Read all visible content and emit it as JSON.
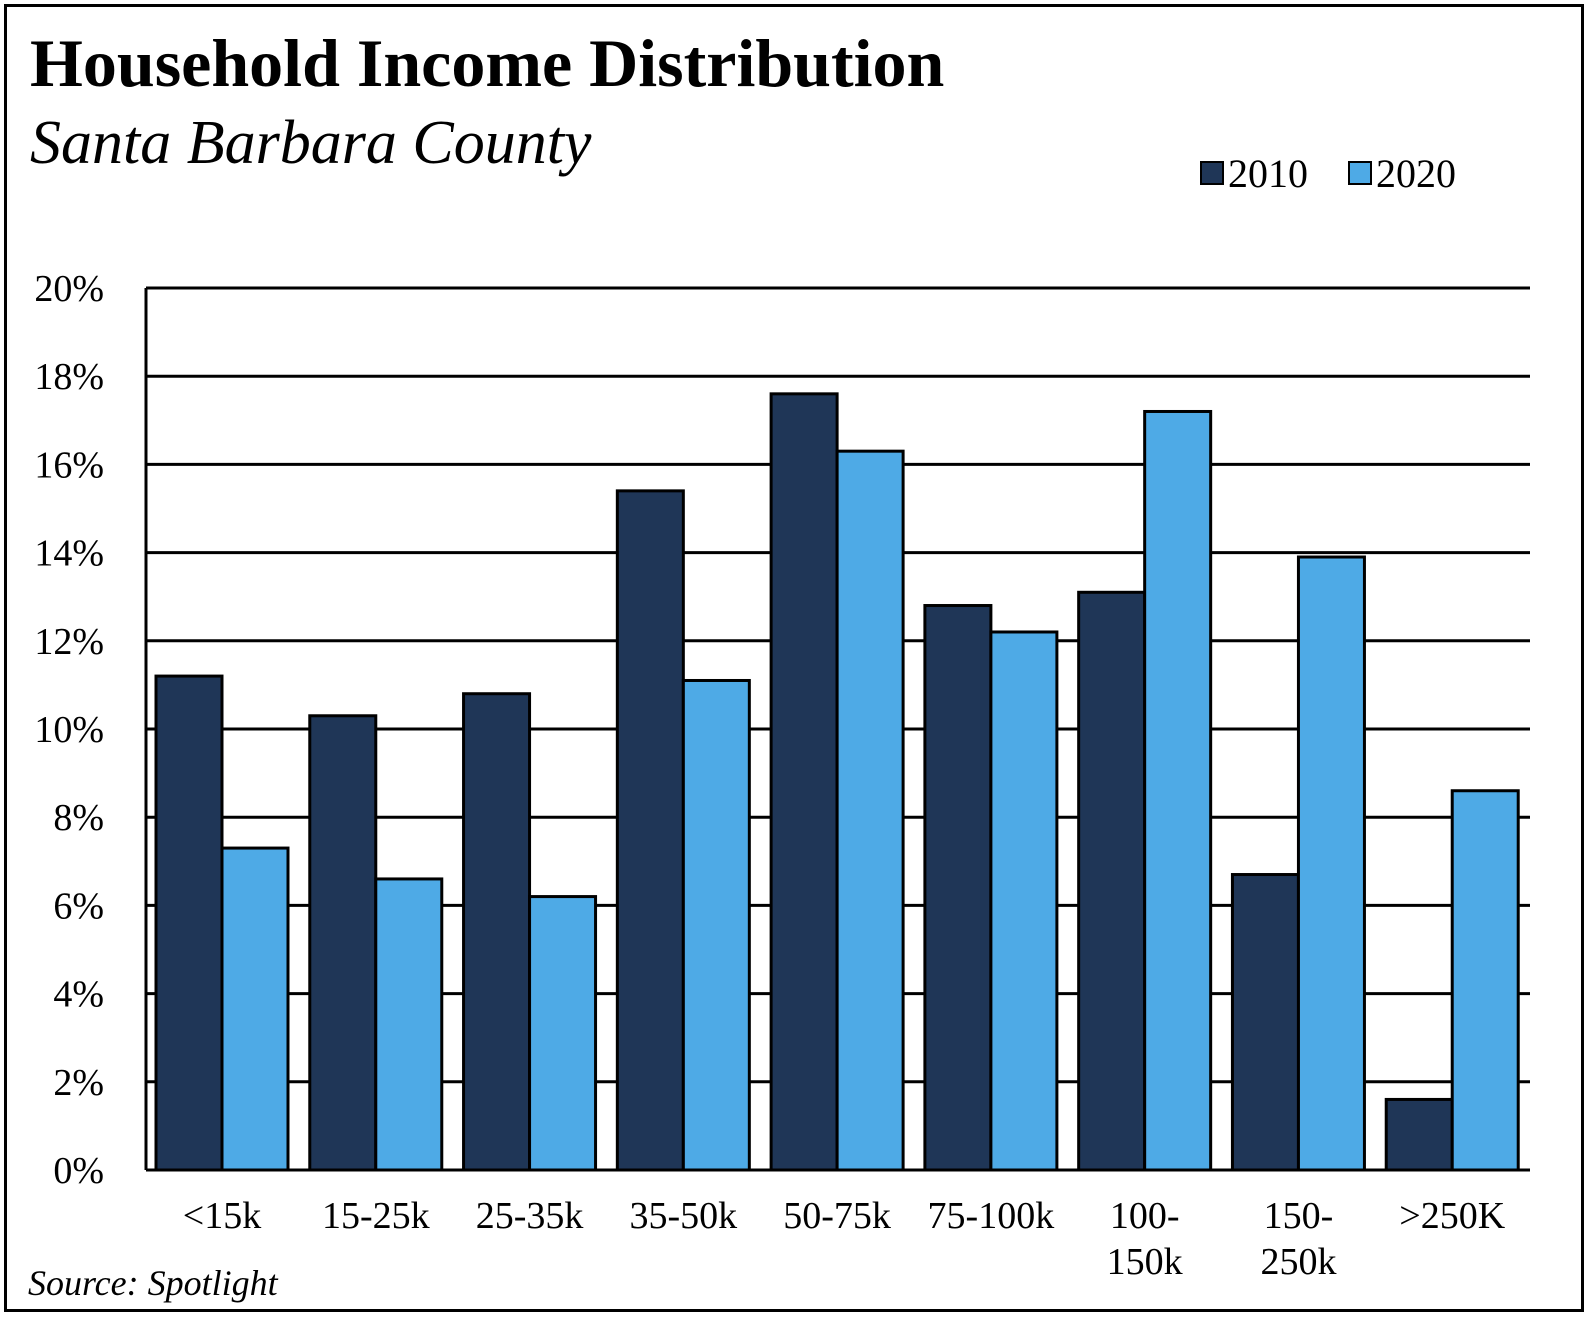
{
  "header": {
    "title": "Household Income Distribution",
    "subtitle": "Santa Barbara County"
  },
  "footer": {
    "source": "Source: Spotlight"
  },
  "colors": {
    "series_2010": "#1f3657",
    "series_2020": "#4eaae6",
    "gridline": "#000000"
  },
  "chart_data": {
    "type": "bar",
    "title": "Household Income Distribution",
    "subtitle": "Santa Barbara County",
    "xlabel": "",
    "ylabel": "",
    "ylim": [
      0,
      20
    ],
    "y_unit": "%",
    "y_ticks": [
      "0%",
      "2%",
      "4%",
      "6%",
      "8%",
      "10%",
      "12%",
      "14%",
      "16%",
      "18%",
      "20%"
    ],
    "grid": true,
    "legend_position": "top-right",
    "categories": [
      [
        "<15k"
      ],
      [
        "15-25k"
      ],
      [
        "25-35k"
      ],
      [
        "35-50k"
      ],
      [
        "50-75k"
      ],
      [
        "75-100k"
      ],
      [
        "100-",
        "150k"
      ],
      [
        "150-",
        "250k"
      ],
      [
        ">250K"
      ]
    ],
    "series": [
      {
        "name": "2010",
        "values": [
          11.2,
          10.3,
          10.8,
          15.4,
          17.6,
          12.8,
          13.1,
          6.7,
          1.6
        ]
      },
      {
        "name": "2020",
        "values": [
          7.3,
          6.6,
          6.2,
          11.1,
          16.3,
          12.2,
          17.2,
          13.9,
          8.6
        ]
      }
    ]
  }
}
